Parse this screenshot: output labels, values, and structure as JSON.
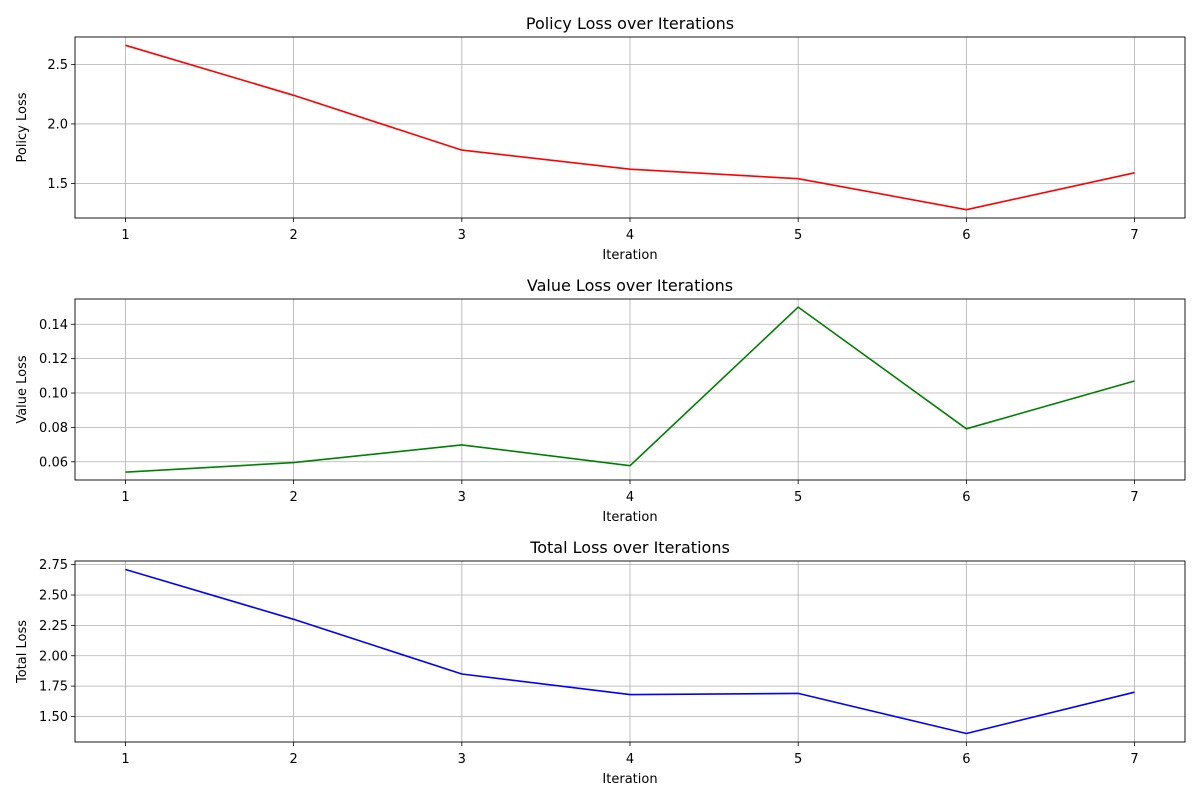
{
  "chart_data": [
    {
      "type": "line",
      "title": "Policy Loss over Iterations",
      "xlabel": "Iteration",
      "ylabel": "Policy Loss",
      "x": [
        1,
        2,
        3,
        4,
        5,
        6,
        7
      ],
      "series": [
        {
          "values": [
            2.66,
            2.24,
            1.78,
            1.62,
            1.54,
            1.28,
            1.59
          ],
          "color": "#ff0000"
        }
      ],
      "xlim": [
        0.7,
        7.3
      ],
      "ylim": [
        1.21,
        2.73
      ],
      "xticks": [
        "1",
        "2",
        "3",
        "4",
        "5",
        "6",
        "7"
      ],
      "yticks": [
        1.5,
        2.0,
        2.5
      ],
      "ytick_labels": [
        "1.5",
        "2.0",
        "2.5"
      ],
      "grid": true
    },
    {
      "type": "line",
      "title": "Value Loss over Iterations",
      "xlabel": "Iteration",
      "ylabel": "Value Loss",
      "x": [
        1,
        2,
        3,
        4,
        5,
        6,
        7
      ],
      "series": [
        {
          "values": [
            0.054,
            0.0595,
            0.0698,
            0.0577,
            0.15,
            0.0792,
            0.107
          ],
          "color": "#008000"
        }
      ],
      "xlim": [
        0.7,
        7.3
      ],
      "ylim": [
        0.0494,
        0.1547
      ],
      "xticks": [
        "1",
        "2",
        "3",
        "4",
        "5",
        "6",
        "7"
      ],
      "yticks": [
        0.06,
        0.08,
        0.1,
        0.12,
        0.14
      ],
      "ytick_labels": [
        "0.06",
        "0.08",
        "0.10",
        "0.12",
        "0.14"
      ],
      "grid": true
    },
    {
      "type": "line",
      "title": "Total Loss over Iterations",
      "xlabel": "Iteration",
      "ylabel": "Total Loss",
      "x": [
        1,
        2,
        3,
        4,
        5,
        6,
        7
      ],
      "series": [
        {
          "values": [
            2.71,
            2.3,
            1.85,
            1.68,
            1.69,
            1.36,
            1.7
          ],
          "color": "#0000ff"
        }
      ],
      "xlim": [
        0.7,
        7.3
      ],
      "ylim": [
        1.29,
        2.78
      ],
      "xticks": [
        "1",
        "2",
        "3",
        "4",
        "5",
        "6",
        "7"
      ],
      "yticks": [
        1.5,
        1.75,
        2.0,
        2.25,
        2.5,
        2.75
      ],
      "ytick_labels": [
        "1.50",
        "1.75",
        "2.00",
        "2.25",
        "2.50",
        "2.75"
      ],
      "grid": true
    }
  ]
}
